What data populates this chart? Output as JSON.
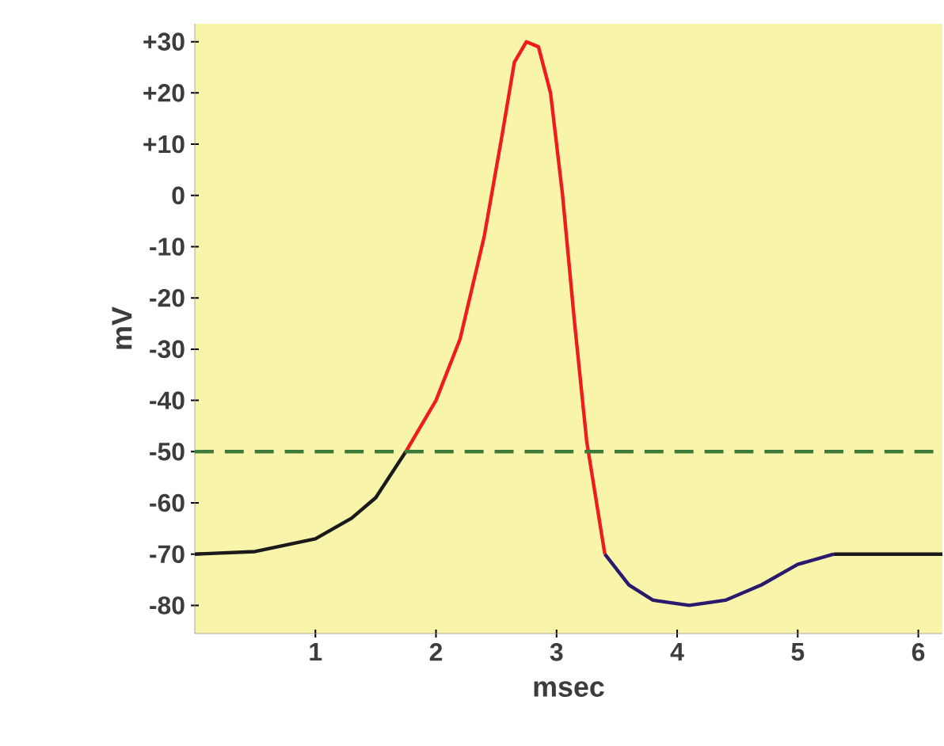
{
  "chart_data": {
    "type": "line",
    "xlabel": "msec",
    "ylabel": "mV",
    "xlim": [
      0,
      6.2
    ],
    "ylim": [
      -85.5,
      33.5
    ],
    "xticks": [
      1,
      2,
      3,
      4,
      5,
      6
    ],
    "yticks": [
      {
        "value": 30,
        "label": "+30"
      },
      {
        "value": 20,
        "label": "+20"
      },
      {
        "value": 10,
        "label": "+10"
      },
      0,
      -10,
      -20,
      -30,
      -40,
      -50,
      -60,
      -70,
      -80
    ],
    "series": [
      {
        "color": "#1a1a1a",
        "x": [
          0,
          0.5,
          1,
          1.3,
          1.5,
          1.75,
          4,
          5.3,
          6.2
        ],
        "values": [
          -70,
          -69.5,
          -67,
          -63,
          -59,
          -50,
          null,
          -70,
          -70
        ]
      },
      {
        "color": "#ee1c1c",
        "x": [
          1.75,
          2,
          2.2,
          2.4,
          2.55,
          2.65,
          2.75,
          2.85,
          2.95,
          3.05,
          3.15,
          3.25,
          3.4
        ],
        "values": [
          -50,
          -40,
          -28,
          -8,
          12,
          26,
          30,
          29,
          20,
          0,
          -25,
          -48,
          -70
        ]
      },
      {
        "color": "#2a1a6e",
        "x": [
          3.4,
          3.6,
          3.8,
          4.1,
          4.4,
          4.7,
          5,
          5.3
        ],
        "values": [
          -70,
          -76,
          -79,
          -80,
          -79,
          -76,
          -72,
          -70
        ]
      }
    ],
    "ref_lines": [
      {
        "axis": "y",
        "value": -50,
        "color": "#3d7a3a",
        "line_style": "dashed"
      }
    ],
    "grid": false,
    "marker": "none",
    "line_style": "solid"
  }
}
